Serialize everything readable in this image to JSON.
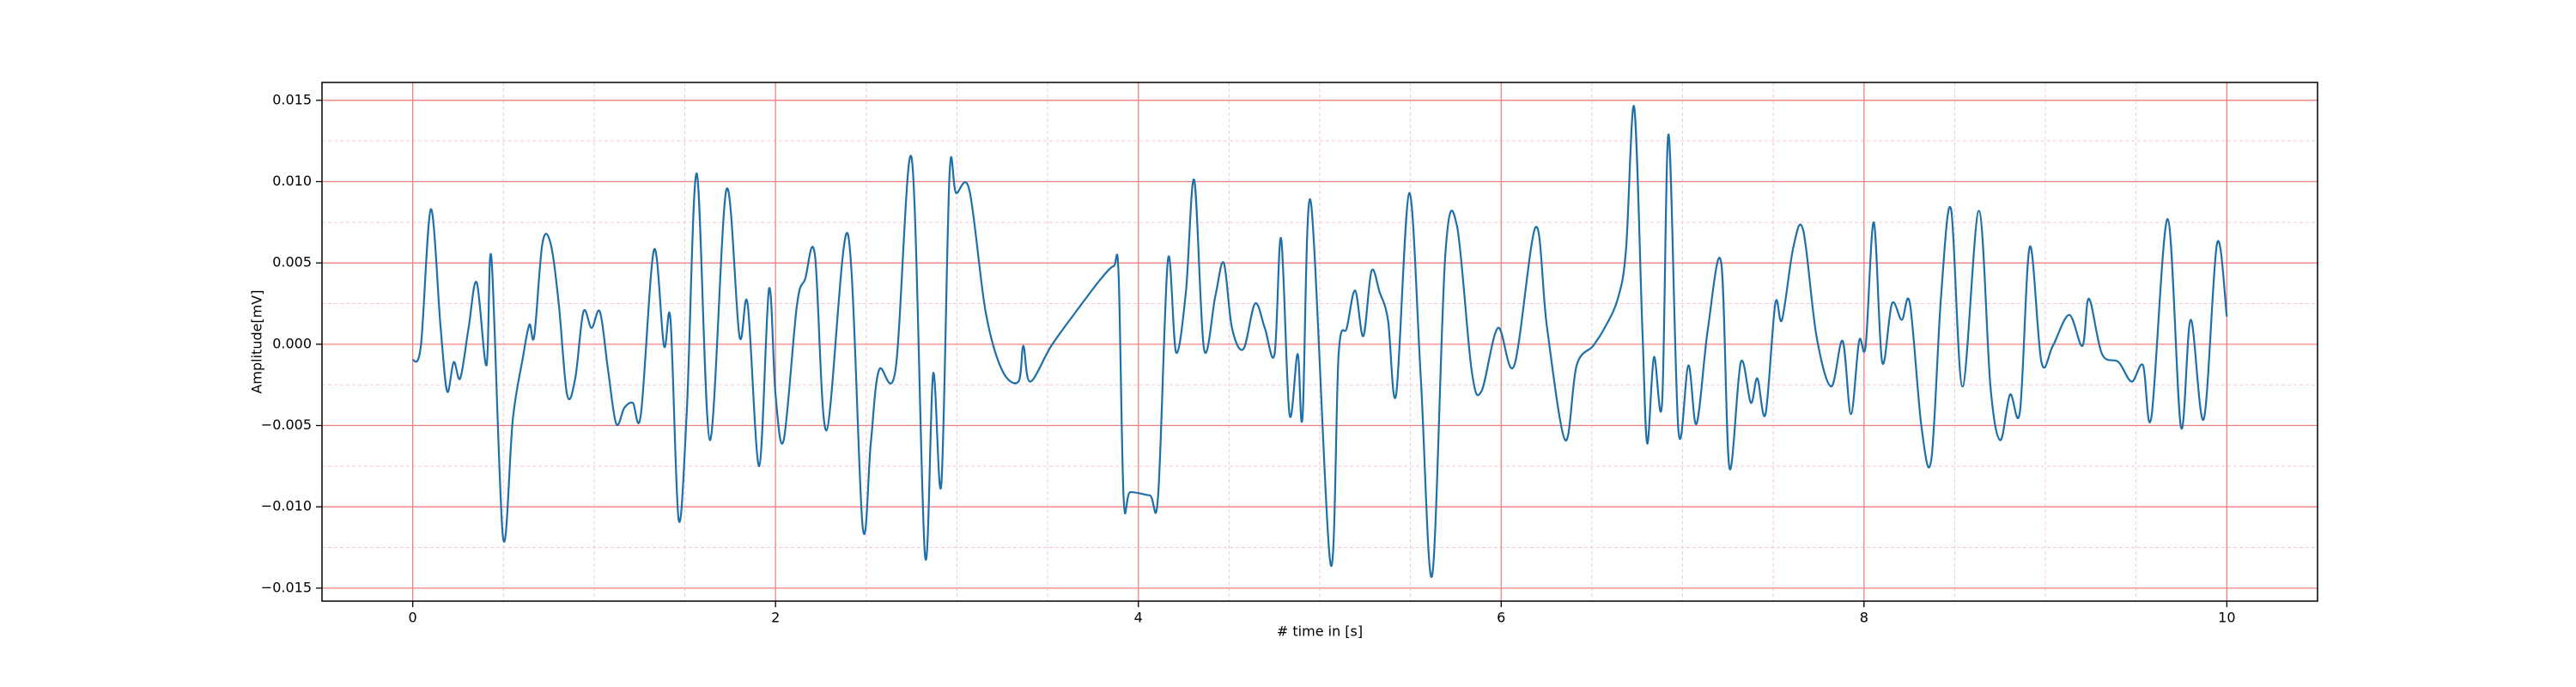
{
  "chart_data": {
    "type": "line",
    "xlabel": "# time in [s]",
    "ylabel": "Amplitude[mV]",
    "xlim": [
      -0.5,
      10.5
    ],
    "ylim": [
      -0.0158,
      0.0161
    ],
    "xticks": [
      0,
      2,
      4,
      6,
      8,
      10
    ],
    "yticks": [
      {
        "value": -0.015,
        "label": "−0.015"
      },
      {
        "value": -0.01,
        "label": "−0.010"
      },
      {
        "value": -0.005,
        "label": "−0.005"
      },
      {
        "value": 0,
        "label": "0.000"
      },
      0.005,
      {
        "value": 0.01,
        "label": "0.010"
      },
      0.015
    ],
    "xminorticks": [
      0.5,
      1,
      1.5,
      2.5,
      3,
      3.5,
      4.5,
      5,
      5.5,
      6.5,
      7,
      7.5,
      8.5,
      9,
      9.5
    ],
    "yminorticks": [
      -0.0125,
      -0.0075,
      -0.0025,
      0.0025,
      0.0075,
      0.0125
    ],
    "grid": true,
    "grid_color": "#f08080",
    "minor_grid_color": "#f7c6d6",
    "series": [
      {
        "color": "#1f6fa8",
        "x": [
          0,
          0.045,
          0.1,
          0.154,
          0.19,
          0.226,
          0.262,
          0.308,
          0.353,
          0.407,
          0.434,
          0.498,
          0.552,
          0.606,
          0.643,
          0.67,
          0.715,
          0.76,
          0.805,
          0.851,
          0.896,
          0.941,
          0.986,
          1.032,
          1.077,
          1.122,
          1.167,
          1.213,
          1.258,
          1.33,
          1.385,
          1.421,
          1.466,
          1.511,
          1.566,
          1.638,
          1.729,
          1.801,
          1.846,
          1.91,
          1.964,
          2.0,
          2.045,
          2.118,
          2.163,
          2.217,
          2.281,
          2.398,
          2.48,
          2.525,
          2.57,
          2.661,
          2.751,
          2.824,
          2.869,
          2.914,
          2.959,
          2.995,
          3.068,
          3.158,
          3.249,
          3.339,
          3.366,
          3.403,
          3.52,
          3.656,
          3.792,
          3.864,
          3.891,
          3.919,
          3.955,
          4.063,
          4.109,
          4.163,
          4.208,
          4.262,
          4.308,
          4.362,
          4.425,
          4.471,
          4.516,
          4.579,
          4.643,
          4.697,
          4.751,
          4.787,
          4.833,
          4.878,
          4.905,
          4.95,
          5.059,
          5.104,
          5.149,
          5.195,
          5.24,
          5.285,
          5.33,
          5.376,
          5.421,
          5.493,
          5.557,
          5.62,
          5.692,
          5.756,
          5.837,
          5.891,
          5.982,
          6.072,
          6.19,
          6.253,
          6.353,
          6.416,
          6.507,
          6.57,
          6.643,
          6.688,
          6.733,
          6.778,
          6.805,
          6.842,
          6.887,
          6.923,
          6.977,
          7.032,
          7.077,
          7.14,
          7.213,
          7.258,
          7.321,
          7.376,
          7.412,
          7.457,
          7.511,
          7.548,
          7.611,
          7.665,
          7.738,
          7.819,
          7.882,
          7.928,
          7.973,
          8.009,
          8.054,
          8.1,
          8.154,
          8.208,
          8.253,
          8.317,
          8.371,
          8.425,
          8.48,
          8.543,
          8.633,
          8.697,
          8.751,
          8.805,
          8.86,
          8.914,
          8.978,
          9.041,
          9.131,
          9.204,
          9.24,
          9.312,
          9.403,
          9.475,
          9.538,
          9.584,
          9.674,
          9.747,
          9.801,
          9.873,
          9.946,
          10.0
        ],
        "values": [
          -0.001,
          -0.0001,
          0.0083,
          0.001,
          -0.0029,
          -0.0011,
          -0.0021,
          0.001,
          0.0038,
          -0.0013,
          0.0053,
          -0.0119,
          -0.0046,
          -0.0009,
          0.0012,
          0.0005,
          0.0062,
          0.0062,
          0.0025,
          -0.0031,
          -0.0021,
          0.002,
          0.001,
          0.002,
          -0.0016,
          -0.0049,
          -0.0039,
          -0.0036,
          -0.0043,
          0.0058,
          -0.0001,
          0.0015,
          -0.0108,
          -0.0041,
          0.0105,
          -0.0059,
          0.0095,
          0.0005,
          0.0025,
          -0.0075,
          0.0034,
          -0.0031,
          -0.0059,
          0.0024,
          0.004,
          0.0055,
          -0.0053,
          0.0068,
          -0.0112,
          -0.0061,
          -0.0016,
          -0.0016,
          0.0114,
          -0.013,
          -0.0018,
          -0.0086,
          0.0104,
          0.0093,
          0.0095,
          0.002,
          -0.0016,
          -0.0023,
          -0.0001,
          -0.0023,
          -0.0001,
          0.002,
          0.004,
          0.0048,
          0.0043,
          -0.0095,
          -0.0091,
          -0.0093,
          -0.0093,
          0.0052,
          -0.0005,
          0.0032,
          0.0101,
          -0.0003,
          0.003,
          0.005,
          0.001,
          -0.0003,
          0.0025,
          0.001,
          -0.0006,
          0.0065,
          -0.0043,
          -0.0006,
          -0.0045,
          0.0088,
          -0.0135,
          -0.0006,
          0.001,
          0.0033,
          0.0005,
          0.0045,
          0.0032,
          0.0015,
          -0.0031,
          0.0093,
          -0.0021,
          -0.0142,
          0.0055,
          0.0073,
          -0.0016,
          -0.0029,
          0.001,
          -0.0013,
          0.0072,
          0.001,
          -0.0059,
          -0.0013,
          -0.0001,
          0.001,
          0.0028,
          0.0058,
          0.0146,
          0.001,
          -0.0061,
          -0.0008,
          -0.0036,
          0.0129,
          -0.0053,
          -0.0013,
          -0.0049,
          0.001,
          0.005,
          -0.0076,
          -0.0011,
          -0.0036,
          -0.0021,
          -0.0043,
          0.0025,
          0.0015,
          0.006,
          0.007,
          0.0005,
          -0.0026,
          0.0002,
          -0.0043,
          0.0002,
          -0.0001,
          0.0075,
          -0.0011,
          0.0025,
          0.0015,
          0.0025,
          -0.0051,
          -0.0071,
          0.003,
          0.0083,
          -0.0026,
          0.0082,
          -0.0026,
          -0.0059,
          -0.0031,
          -0.0041,
          0.006,
          -0.0011,
          -0.0001,
          0.0018,
          -0.0001,
          0.0028,
          -0.0006,
          -0.0011,
          -0.0023,
          -0.0013,
          -0.0045,
          0.0077,
          -0.0051,
          0.0015,
          -0.0046,
          0.0062,
          0.0017
        ]
      }
    ]
  }
}
